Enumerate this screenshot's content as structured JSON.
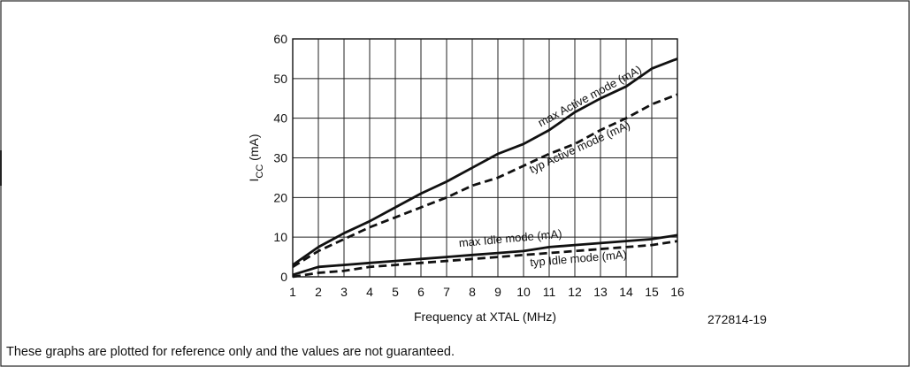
{
  "figure_id": "272814-19",
  "footnote": "These graphs are plotted for reference only and the values are not guaranteed.",
  "chart_data": {
    "type": "line",
    "xlabel": "Frequency at XTAL (MHz)",
    "ylabel": "ICC (mA)",
    "ylabel_main": "I",
    "ylabel_sub": "CC",
    "ylabel_unit": " (mA)",
    "xlim": [
      1,
      16
    ],
    "ylim": [
      0,
      60
    ],
    "x_ticks": [
      1,
      2,
      3,
      4,
      5,
      6,
      7,
      8,
      9,
      10,
      11,
      12,
      13,
      14,
      15,
      16
    ],
    "y_ticks": [
      0,
      10,
      20,
      30,
      40,
      50,
      60
    ],
    "grid": true,
    "series": [
      {
        "name": "max Active mode (mA)",
        "style": "solid",
        "x": [
          1,
          2,
          3,
          4,
          5,
          6,
          7,
          8,
          9,
          10,
          11,
          12,
          13,
          14,
          15,
          16
        ],
        "y": [
          3,
          7.5,
          11,
          14,
          17.5,
          21,
          24,
          27.5,
          31,
          33.5,
          37,
          41.5,
          45,
          48,
          52.5,
          55
        ]
      },
      {
        "name": "typ Active mode (mA)",
        "style": "dashed",
        "x": [
          1,
          2,
          3,
          4,
          5,
          6,
          7,
          8,
          9,
          10,
          11,
          12,
          13,
          14,
          15,
          16
        ],
        "y": [
          2.5,
          6.5,
          9.5,
          12.5,
          15,
          17.5,
          20,
          23,
          25,
          28,
          31,
          33.5,
          37,
          40,
          43.5,
          46
        ]
      },
      {
        "name": "max Idle mode (mA)",
        "style": "solid",
        "x": [
          1,
          2,
          3,
          4,
          5,
          6,
          7,
          8,
          9,
          10,
          11,
          12,
          13,
          14,
          15,
          16
        ],
        "y": [
          0.5,
          2.5,
          3,
          3.5,
          4,
          4.5,
          5,
          5.5,
          6,
          6.5,
          7.5,
          8,
          8.5,
          9,
          9.5,
          10.5
        ]
      },
      {
        "name": "typ Idle mode (mA)",
        "style": "dashed",
        "x": [
          1,
          2,
          3,
          4,
          5,
          6,
          7,
          8,
          9,
          10,
          11,
          12,
          13,
          14,
          15,
          16
        ],
        "y": [
          0,
          1,
          1.5,
          2.5,
          3,
          3.5,
          4,
          4.5,
          5,
          5.5,
          6,
          6.5,
          7,
          7.5,
          8,
          9
        ]
      }
    ]
  }
}
